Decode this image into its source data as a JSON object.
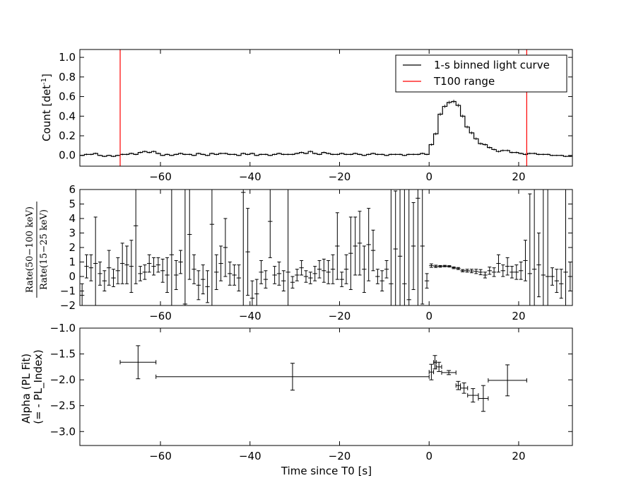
{
  "chart_data": [
    {
      "type": "line",
      "panel": "count",
      "ylabel_main": "Count [det",
      "ylabel_sup": "-1",
      "ylabel_end": "]",
      "xlim": [
        -78,
        32
      ],
      "ylim": [
        -0.11,
        1.08
      ],
      "x_ticks": [
        -60,
        -40,
        -20,
        0,
        20
      ],
      "x_tick_labels": [
        "−60",
        "−40",
        "−20",
        "0",
        "20"
      ],
      "y_ticks": [
        0.0,
        0.2,
        0.4,
        0.6,
        0.8,
        1.0
      ],
      "y_tick_labels": [
        "0.0",
        "0.2",
        "0.4",
        "0.6",
        "0.8",
        "1.0"
      ],
      "legend": {
        "position": "top-right",
        "entries": [
          {
            "label": "1-s binned light curve",
            "color": "#000000"
          },
          {
            "label": "T100 range",
            "color": "#ff0000"
          }
        ]
      },
      "vlines": [
        -69,
        21.8
      ],
      "bin_start": -78,
      "bin_width": 1,
      "values": [
        0.0,
        0.01,
        0.01,
        0.02,
        0.0,
        -0.01,
        0.0,
        -0.01,
        0.0,
        0.01,
        0.01,
        0.02,
        0.01,
        0.03,
        0.04,
        0.03,
        0.04,
        0.02,
        0.0,
        0.01,
        0.0,
        0.01,
        0.02,
        0.01,
        0.01,
        0.0,
        0.02,
        0.01,
        0.0,
        0.02,
        0.01,
        0.02,
        0.02,
        0.01,
        0.01,
        0.0,
        0.02,
        0.01,
        0.02,
        0.0,
        0.01,
        0.01,
        0.0,
        0.01,
        0.02,
        0.01,
        0.01,
        0.01,
        0.02,
        0.03,
        0.02,
        0.04,
        0.02,
        0.01,
        0.03,
        0.02,
        0.01,
        0.01,
        0.02,
        0.01,
        0.01,
        0.02,
        0.01,
        0.0,
        0.01,
        0.02,
        0.01,
        0.01,
        0.0,
        0.01,
        0.01,
        0.01,
        0.0,
        0.01,
        0.01,
        0.01,
        0.02,
        0.01,
        0.11,
        0.22,
        0.42,
        0.5,
        0.54,
        0.55,
        0.51,
        0.4,
        0.29,
        0.23,
        0.17,
        0.12,
        0.11,
        0.08,
        0.06,
        0.04,
        0.05,
        0.05,
        0.03,
        0.03,
        0.02,
        0.01,
        0.02,
        0.02,
        0.01,
        0.01,
        0.01,
        0.0,
        0.0,
        0.0,
        -0.01,
        -0.01
      ]
    },
    {
      "type": "scatter",
      "panel": "hardness",
      "ylabel_num": "Rate(50−100 keV)",
      "ylabel_den": "Rate(15−25 keV)",
      "xlim": [
        -78,
        32
      ],
      "ylim": [
        -2,
        6
      ],
      "x_ticks": [
        -60,
        -40,
        -20,
        0,
        20
      ],
      "x_tick_labels": [
        "−60",
        "−40",
        "−20",
        "0",
        "20"
      ],
      "y_ticks": [
        -2,
        -1,
        0,
        1,
        2,
        3,
        4,
        5,
        6
      ],
      "y_tick_labels": [
        "−2",
        "−1",
        "0",
        "1",
        "2",
        "3",
        "4",
        "5",
        "6"
      ],
      "points": [
        {
          "x": -77.5,
          "y": -1.3,
          "err": 0.8
        },
        {
          "x": -76.5,
          "y": 0.7,
          "err": 0.8
        },
        {
          "x": -75.5,
          "y": 0.6,
          "err": 0.9
        },
        {
          "x": -74.5,
          "y": 0.9,
          "err": 3.2
        },
        {
          "x": -73.5,
          "y": 0.2,
          "err": 0.8
        },
        {
          "x": -72.5,
          "y": -0.3,
          "err": 0.7
        },
        {
          "x": -71.5,
          "y": 0.6,
          "err": 1.2
        },
        {
          "x": -70.5,
          "y": -0.1,
          "err": 0.6
        },
        {
          "x": -69.5,
          "y": 0.4,
          "err": 0.9
        },
        {
          "x": -68.5,
          "y": 0.9,
          "err": 1.4
        },
        {
          "x": -67.5,
          "y": 0.8,
          "err": 1.3
        },
        {
          "x": -66.5,
          "y": 0.7,
          "err": 1.8
        },
        {
          "x": -65.5,
          "y": 3.5,
          "err": 4.0
        },
        {
          "x": -64.5,
          "y": 0.2,
          "err": 0.5
        },
        {
          "x": -63.5,
          "y": 0.3,
          "err": 0.5
        },
        {
          "x": -62.5,
          "y": 0.9,
          "err": 0.6
        },
        {
          "x": -61.5,
          "y": 0.7,
          "err": 0.6
        },
        {
          "x": -60.5,
          "y": 0.8,
          "err": 0.5
        },
        {
          "x": -59.5,
          "y": 0.4,
          "err": 0.8
        },
        {
          "x": -58.5,
          "y": 0.1,
          "err": 1.2
        },
        {
          "x": -57.5,
          "y": 1.5,
          "err": 6.0
        },
        {
          "x": -56.5,
          "y": 0.1,
          "err": 1.0
        },
        {
          "x": -55.5,
          "y": 1.0,
          "err": 0.8
        },
        {
          "x": -54.5,
          "y": -1.9,
          "err": 8.0
        },
        {
          "x": -53.5,
          "y": 2.9,
          "err": 3.1
        },
        {
          "x": -52.5,
          "y": 0.5,
          "err": 1.0
        },
        {
          "x": -51.5,
          "y": -0.6,
          "err": 1.0
        },
        {
          "x": -50.5,
          "y": -0.2,
          "err": 1.0
        },
        {
          "x": -49.5,
          "y": -0.7,
          "err": 1.1
        },
        {
          "x": -48.5,
          "y": 3.6,
          "err": 6.0
        },
        {
          "x": -47.5,
          "y": 0.3,
          "err": 1.2
        },
        {
          "x": -46.5,
          "y": 0.9,
          "err": 1.2
        },
        {
          "x": -45.5,
          "y": 2.0,
          "err": 2.0
        },
        {
          "x": -44.5,
          "y": 0.2,
          "err": 0.8
        },
        {
          "x": -43.5,
          "y": 0.1,
          "err": 0.7
        },
        {
          "x": -42.5,
          "y": -0.1,
          "err": 0.9
        },
        {
          "x": -41.5,
          "y": 5.8,
          "err": 8.0
        },
        {
          "x": -40.5,
          "y": 1.7,
          "err": 3.0
        },
        {
          "x": -39.5,
          "y": -1.5,
          "err": 1.2
        },
        {
          "x": -38.5,
          "y": -1.2,
          "err": 1.0
        },
        {
          "x": -37.5,
          "y": 0.3,
          "err": 0.8
        },
        {
          "x": -36.5,
          "y": -0.2,
          "err": 0.6
        },
        {
          "x": -35.5,
          "y": 3.8,
          "err": 2.5
        },
        {
          "x": -34.5,
          "y": 0.1,
          "err": 0.6
        },
        {
          "x": -33.5,
          "y": 0.2,
          "err": 0.8
        },
        {
          "x": -32.5,
          "y": -0.3,
          "err": 0.7
        },
        {
          "x": -31.5,
          "y": 0.3,
          "err": 8.0
        },
        {
          "x": -30.5,
          "y": -0.4,
          "err": 0.4
        },
        {
          "x": -29.5,
          "y": 0.1,
          "err": 0.4
        },
        {
          "x": -28.5,
          "y": 0.6,
          "err": 0.5
        },
        {
          "x": -27.5,
          "y": 0.0,
          "err": 0.4
        },
        {
          "x": -26.5,
          "y": -0.1,
          "err": 0.4
        },
        {
          "x": -25.5,
          "y": 0.2,
          "err": 0.5
        },
        {
          "x": -24.5,
          "y": 0.5,
          "err": 0.6
        },
        {
          "x": -23.5,
          "y": 0.4,
          "err": 0.8
        },
        {
          "x": -22.5,
          "y": 0.3,
          "err": 0.8
        },
        {
          "x": -21.5,
          "y": 0.5,
          "err": 1.0
        },
        {
          "x": -20.5,
          "y": 2.1,
          "err": 2.3
        },
        {
          "x": -19.5,
          "y": -0.2,
          "err": 0.5
        },
        {
          "x": -18.5,
          "y": 0.5,
          "err": 1.0
        },
        {
          "x": -17.5,
          "y": 1.6,
          "err": 2.5
        },
        {
          "x": -16.5,
          "y": 2.1,
          "err": 2.0
        },
        {
          "x": -15.5,
          "y": 2.3,
          "err": 2.2
        },
        {
          "x": -14.5,
          "y": 0.5,
          "err": 1.6
        },
        {
          "x": -13.5,
          "y": 2.2,
          "err": 2.5
        },
        {
          "x": -12.5,
          "y": 1.8,
          "err": 1.4
        },
        {
          "x": -11.5,
          "y": 0.0,
          "err": 0.5
        },
        {
          "x": -10.5,
          "y": -0.3,
          "err": 0.7
        },
        {
          "x": -9.5,
          "y": 0.5,
          "err": 0.6
        },
        {
          "x": -8.5,
          "y": -0.5,
          "err": 8.0
        },
        {
          "x": -7.5,
          "y": 1.9,
          "err": 4.0
        },
        {
          "x": -6.5,
          "y": 1.4,
          "err": 8.0
        },
        {
          "x": -5.5,
          "y": -0.5,
          "err": 8.0
        },
        {
          "x": -4.5,
          "y": -1.6,
          "err": 8.0
        },
        {
          "x": -3.5,
          "y": 2.1,
          "err": 3.0
        },
        {
          "x": -2.5,
          "y": 5.4,
          "err": 8.0
        },
        {
          "x": -1.5,
          "y": 2.1,
          "err": 4.0
        },
        {
          "x": -0.5,
          "y": -0.3,
          "err": 0.5
        },
        {
          "x": 0.5,
          "y": 0.75,
          "err": 0.12
        },
        {
          "x": 1.5,
          "y": 0.7,
          "err": 0.08
        },
        {
          "x": 2.5,
          "y": 0.7,
          "err": 0.06
        },
        {
          "x": 3.5,
          "y": 0.72,
          "err": 0.05
        },
        {
          "x": 4.5,
          "y": 0.7,
          "err": 0.05
        },
        {
          "x": 5.5,
          "y": 0.6,
          "err": 0.06
        },
        {
          "x": 6.5,
          "y": 0.55,
          "err": 0.07
        },
        {
          "x": 7.5,
          "y": 0.4,
          "err": 0.08
        },
        {
          "x": 8.5,
          "y": 0.4,
          "err": 0.1
        },
        {
          "x": 9.5,
          "y": 0.38,
          "err": 0.12
        },
        {
          "x": 10.5,
          "y": 0.35,
          "err": 0.15
        },
        {
          "x": 11.5,
          "y": 0.3,
          "err": 0.18
        },
        {
          "x": 12.5,
          "y": 0.1,
          "err": 0.2
        },
        {
          "x": 13.5,
          "y": 0.4,
          "err": 0.25
        },
        {
          "x": 14.5,
          "y": 0.3,
          "err": 0.3
        },
        {
          "x": 15.5,
          "y": 0.9,
          "err": 0.6
        },
        {
          "x": 16.5,
          "y": 0.4,
          "err": 0.4
        },
        {
          "x": 17.5,
          "y": 0.7,
          "err": 0.6
        },
        {
          "x": 18.5,
          "y": 0.3,
          "err": 0.4
        },
        {
          "x": 19.5,
          "y": 0.3,
          "err": 0.5
        },
        {
          "x": 20.5,
          "y": 0.4,
          "err": 0.6
        },
        {
          "x": 21.5,
          "y": 1.1,
          "err": 1.4
        },
        {
          "x": 22.5,
          "y": 0.2,
          "err": 5.5
        },
        {
          "x": 23.5,
          "y": 0.5,
          "err": 8.0
        },
        {
          "x": 24.5,
          "y": 0.8,
          "err": 2.2
        },
        {
          "x": 25.5,
          "y": 0.1,
          "err": 8.0
        },
        {
          "x": 26.5,
          "y": 0.0,
          "err": 8.0
        },
        {
          "x": 27.5,
          "y": 0.0,
          "err": 0.6
        },
        {
          "x": 28.5,
          "y": -0.3,
          "err": 0.8
        },
        {
          "x": 29.5,
          "y": -0.5,
          "err": 1.0
        },
        {
          "x": 30.5,
          "y": 0.3,
          "err": 8.0
        },
        {
          "x": 31.5,
          "y": 0.0,
          "err": 1.0
        }
      ]
    },
    {
      "type": "scatter",
      "panel": "alpha",
      "xlabel": "Time since T0 [s]",
      "ylabel_line1": "Alpha (PL Fit)",
      "ylabel_line2": "(= - PL_Index)",
      "xlim": [
        -78,
        32
      ],
      "ylim": [
        -3.27,
        -1.0
      ],
      "x_ticks": [
        -60,
        -40,
        -20,
        0,
        20
      ],
      "x_tick_labels": [
        "−60",
        "−40",
        "−20",
        "0",
        "20"
      ],
      "y_ticks": [
        -3.0,
        -2.5,
        -2.0,
        -1.5,
        -1.0
      ],
      "y_tick_labels": [
        "−3.0",
        "−2.5",
        "−2.0",
        "−1.5",
        "−1.0"
      ],
      "points": [
        {
          "x": -69,
          "xlo": -69,
          "xhi": -61,
          "xc": -65,
          "y": -1.66,
          "yerr": 0.32
        },
        {
          "xlo": -61,
          "xhi": 0,
          "xc": -30.5,
          "y": -1.94,
          "yerr": 0.26
        },
        {
          "xlo": 0,
          "xhi": 1,
          "xc": 0.5,
          "y": -1.85,
          "yerr": 0.15
        },
        {
          "xlo": 1,
          "xhi": 1.6,
          "xc": 1.3,
          "y": -1.66,
          "yerr": 0.13
        },
        {
          "xlo": 1.6,
          "xhi": 2.8,
          "xc": 2.2,
          "y": -1.75,
          "yerr": 0.09
        },
        {
          "xlo": 2.8,
          "xhi": 6,
          "xc": 4.4,
          "y": -1.86,
          "yerr": 0.04
        },
        {
          "xlo": 6,
          "xhi": 7,
          "xc": 6.5,
          "y": -2.11,
          "yerr": 0.08
        },
        {
          "xlo": 7,
          "xhi": 8.6,
          "xc": 7.8,
          "y": -2.16,
          "yerr": 0.1
        },
        {
          "xlo": 8.6,
          "xhi": 11,
          "xc": 9.8,
          "y": -2.3,
          "yerr": 0.13
        },
        {
          "xlo": 11,
          "xhi": 13.2,
          "xc": 12.1,
          "y": -2.36,
          "yerr": 0.25
        },
        {
          "xlo": 13.2,
          "xhi": 21.8,
          "xc": 17.5,
          "y": -2.01,
          "yerr": 0.3
        }
      ]
    }
  ]
}
